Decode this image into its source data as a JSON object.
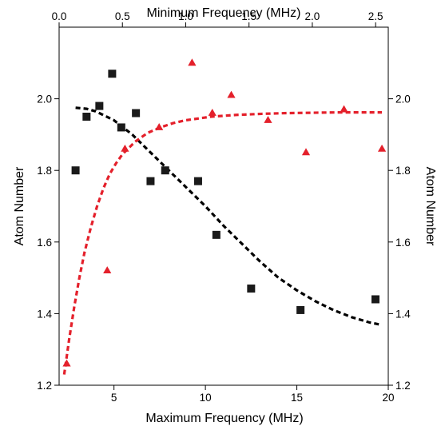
{
  "chart_data": {
    "type": "scatter",
    "xlabel_bottom": "Maximum Frequency (MHz)",
    "xlabel_top": "Minimum Frequency (MHz)",
    "ylabel_left": "Atom Number",
    "ylabel_right": "Atom Number",
    "bottom_x_range": [
      2.0,
      20.0
    ],
    "top_x_range": [
      0.0,
      2.6
    ],
    "y_range": [
      1.2,
      2.2
    ],
    "bottom_ticks": [
      5,
      10,
      15,
      20
    ],
    "bottom_tick_labels": [
      "5",
      "10",
      "15",
      "20"
    ],
    "top_ticks": [
      0.0,
      0.5,
      1.0,
      1.5,
      2.0,
      2.5
    ],
    "top_tick_labels": [
      "0.0",
      "0.5",
      "1.0",
      "1.5",
      "2.0",
      "2.5"
    ],
    "y_ticks": [
      1.2,
      1.4,
      1.6,
      1.8,
      2.0
    ],
    "y_tick_labels": [
      "1.2",
      "1.4",
      "1.6",
      "1.8",
      "2.0"
    ],
    "series": [
      {
        "marker": "square",
        "color": "#1a1a1a",
        "x_axis": "bottom",
        "x": [
          2.9,
          3.5,
          4.2,
          4.9,
          5.4,
          6.2,
          7.0,
          7.8,
          9.6,
          10.6,
          12.5,
          15.2,
          19.3
        ],
        "y": [
          1.8,
          1.95,
          1.98,
          2.07,
          1.92,
          1.96,
          1.77,
          1.8,
          1.77,
          1.62,
          1.47,
          1.41,
          1.44
        ]
      },
      {
        "marker": "triangle",
        "color": "#e4202b",
        "x_axis": "top",
        "x": [
          0.06,
          0.38,
          0.52,
          0.79,
          1.05,
          1.21,
          1.36,
          1.65,
          1.95,
          2.25,
          2.55
        ],
        "y": [
          1.26,
          1.52,
          1.86,
          1.92,
          2.1,
          1.96,
          2.01,
          1.94,
          1.85,
          1.97,
          1.86
        ]
      }
    ],
    "fits": [
      {
        "color": "#000000",
        "style": "dashed",
        "x_axis": "bottom",
        "x": [
          2.9,
          3.5,
          4.0,
          5.0,
          6.0,
          7.0,
          8.0,
          9.0,
          10.0,
          11.0,
          12.0,
          13.0,
          14.0,
          15.0,
          16.0,
          17.0,
          18.0,
          19.0,
          19.5
        ],
        "y": [
          1.975,
          1.972,
          1.965,
          1.94,
          1.9,
          1.85,
          1.8,
          1.75,
          1.7,
          1.645,
          1.595,
          1.545,
          1.5,
          1.465,
          1.435,
          1.41,
          1.39,
          1.375,
          1.37
        ]
      },
      {
        "color": "#e4202b",
        "style": "dashed",
        "x_axis": "top",
        "x": [
          0.04,
          0.08,
          0.12,
          0.16,
          0.2,
          0.25,
          0.3,
          0.35,
          0.4,
          0.45,
          0.5,
          0.6,
          0.7,
          0.8,
          0.9,
          1.0,
          1.2,
          1.4,
          1.6,
          1.8,
          2.0,
          2.2,
          2.4,
          2.55
        ],
        "y": [
          1.23,
          1.33,
          1.42,
          1.5,
          1.57,
          1.64,
          1.7,
          1.75,
          1.79,
          1.82,
          1.845,
          1.88,
          1.905,
          1.92,
          1.932,
          1.94,
          1.95,
          1.955,
          1.958,
          1.96,
          1.961,
          1.962,
          1.962,
          1.962
        ]
      }
    ]
  }
}
